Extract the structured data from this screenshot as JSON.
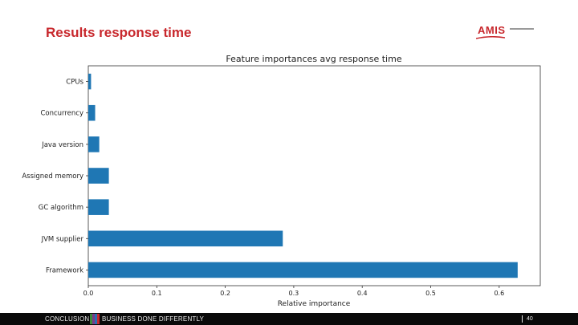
{
  "slide": {
    "title": "Results response time",
    "logo_text": "AMIS"
  },
  "footer": {
    "left_text": "CONCLUSION",
    "right_text": "BUSINESS DONE DIFFERENTLY",
    "page_number": "40",
    "stripe_colors": [
      "#3c8a3a",
      "#7a3a8a",
      "#2a6fb3",
      "#c8282d"
    ]
  },
  "colors": {
    "bar": "#1f77b4",
    "brand_red": "#c8282d"
  },
  "chart_data": {
    "type": "bar",
    "orientation": "horizontal",
    "title": "Feature importances avg response time",
    "xlabel": "Relative importance",
    "ylabel": "",
    "categories": [
      "CPUs",
      "Concurrency",
      "Java version",
      "Assigned memory",
      "GC algorithm",
      "JVM supplier",
      "Framework"
    ],
    "values": [
      0.004,
      0.01,
      0.016,
      0.03,
      0.03,
      0.284,
      0.627
    ],
    "xlim": [
      0,
      0.66
    ],
    "xticks": [
      "0.0",
      "0.1",
      "0.2",
      "0.3",
      "0.4",
      "0.5",
      "0.6"
    ],
    "grid": false,
    "legend": "none"
  }
}
